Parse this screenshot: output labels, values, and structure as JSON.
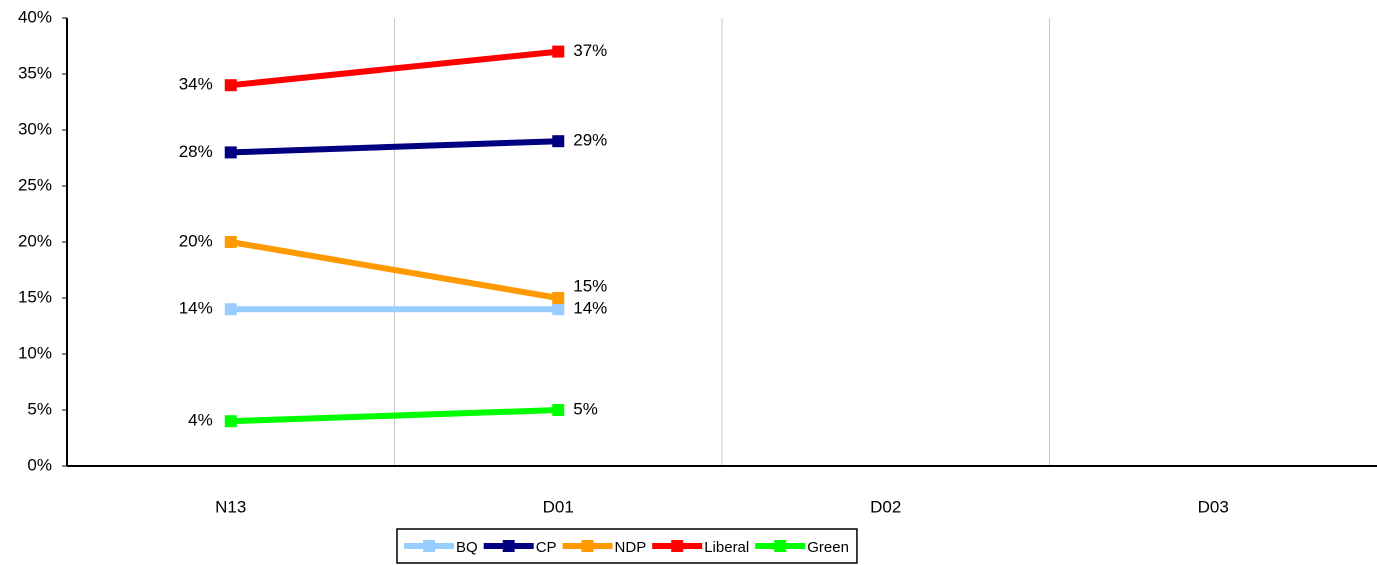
{
  "chart_data": {
    "type": "line",
    "categories": [
      "N13",
      "D01",
      "D02",
      "D03"
    ],
    "ylim": [
      0,
      40
    ],
    "yticks": [
      {
        "value": 0,
        "label": "0%"
      },
      {
        "value": 5,
        "label": "5%"
      },
      {
        "value": 10,
        "label": "10%"
      },
      {
        "value": 15,
        "label": "15%"
      },
      {
        "value": 20,
        "label": "20%"
      },
      {
        "value": 25,
        "label": "25%"
      },
      {
        "value": 30,
        "label": "30%"
      },
      {
        "value": 35,
        "label": "35%"
      },
      {
        "value": 40,
        "label": "40%"
      }
    ],
    "grid": "x",
    "legend": "bottom",
    "series": [
      {
        "name": "BQ",
        "color": "#99ccff",
        "values": [
          14,
          14,
          null,
          null
        ],
        "value_labels": [
          "14%",
          "14%",
          null,
          null
        ]
      },
      {
        "name": "CP",
        "color": "#000080",
        "values": [
          28,
          29,
          null,
          null
        ],
        "value_labels": [
          "28%",
          "29%",
          null,
          null
        ]
      },
      {
        "name": "NDP",
        "color": "#ff9900",
        "values": [
          20,
          15,
          null,
          null
        ],
        "value_labels": [
          "20%",
          "15%",
          null,
          null
        ]
      },
      {
        "name": "Liberal",
        "color": "#ff0000",
        "values": [
          34,
          37,
          null,
          null
        ],
        "value_labels": [
          "34%",
          "37%",
          null,
          null
        ]
      },
      {
        "name": "Green",
        "color": "#00ff00",
        "values": [
          4,
          5,
          null,
          null
        ],
        "value_labels": [
          "4%",
          "5%",
          null,
          null
        ]
      }
    ]
  }
}
